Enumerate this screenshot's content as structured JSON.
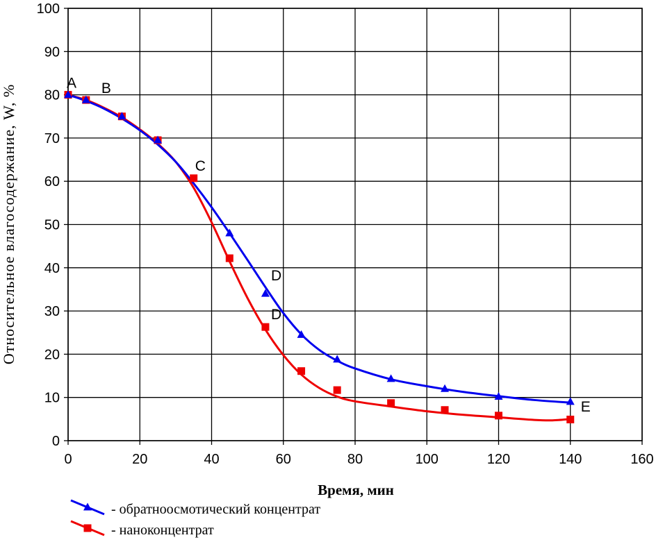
{
  "chart_data": {
    "type": "line",
    "xlabel": "Время, мин",
    "ylabel": "Относительное влагосодержание, W, %",
    "xlim": [
      0,
      160
    ],
    "ylim": [
      0,
      100
    ],
    "xticks": [
      0,
      20,
      40,
      60,
      80,
      100,
      120,
      140,
      160
    ],
    "yticks": [
      0,
      10,
      20,
      30,
      40,
      50,
      60,
      70,
      80,
      90,
      100
    ],
    "grid": true,
    "legend_position": "bottom-left",
    "series": [
      {
        "name": "- обратноосмотический концентрат",
        "color": "#0000ee",
        "marker": "triangle",
        "x": [
          0,
          5,
          15,
          25,
          45,
          55,
          65,
          75,
          90,
          105,
          120,
          140
        ],
        "y": [
          80,
          78.8,
          75,
          69.5,
          48,
          34,
          24.5,
          18.8,
          14.3,
          12,
          10.2,
          9
        ],
        "curve": [
          [
            0,
            80
          ],
          [
            5,
            78.6
          ],
          [
            10,
            76.8
          ],
          [
            15,
            74.5
          ],
          [
            20,
            71.8
          ],
          [
            25,
            68.5
          ],
          [
            30,
            64.5
          ],
          [
            35,
            59.5
          ],
          [
            40,
            54
          ],
          [
            45,
            48
          ],
          [
            50,
            41.8
          ],
          [
            55,
            35.5
          ],
          [
            60,
            29.5
          ],
          [
            65,
            24.6
          ],
          [
            70,
            21
          ],
          [
            75,
            18.5
          ],
          [
            80,
            16.7
          ],
          [
            90,
            14.2
          ],
          [
            100,
            12.6
          ],
          [
            110,
            11.3
          ],
          [
            120,
            10.3
          ],
          [
            130,
            9.4
          ],
          [
            140,
            8.8
          ]
        ]
      },
      {
        "name": "- наноконцентрат",
        "color": "#ee0000",
        "marker": "square",
        "x": [
          0,
          5,
          15,
          25,
          35,
          45,
          55,
          65,
          75,
          90,
          105,
          120,
          140
        ],
        "y": [
          80,
          78.8,
          75,
          69.5,
          60.7,
          42.2,
          26.3,
          16.1,
          11.7,
          8.7,
          7.1,
          5.8,
          4.9
        ],
        "curve": [
          [
            0,
            80
          ],
          [
            5,
            78.8
          ],
          [
            10,
            77
          ],
          [
            15,
            74.8
          ],
          [
            20,
            72
          ],
          [
            25,
            68.7
          ],
          [
            30,
            64.5
          ],
          [
            35,
            58.5
          ],
          [
            40,
            50.5
          ],
          [
            45,
            41.5
          ],
          [
            50,
            33
          ],
          [
            55,
            25.7
          ],
          [
            60,
            19.8
          ],
          [
            65,
            15.3
          ],
          [
            70,
            12.2
          ],
          [
            75,
            10.2
          ],
          [
            80,
            9.1
          ],
          [
            90,
            7.9
          ],
          [
            100,
            6.8
          ],
          [
            110,
            6.0
          ],
          [
            120,
            5.4
          ],
          [
            130,
            4.8
          ],
          [
            135,
            4.7
          ],
          [
            140,
            5.0
          ]
        ]
      }
    ],
    "annotations": [
      {
        "text": "A",
        "x": 0,
        "y": 80
      },
      {
        "text": "B",
        "x": 5,
        "y": 78.8
      },
      {
        "text": "C",
        "x": 35,
        "y": 60.7
      },
      {
        "text": "D",
        "x": 55,
        "y": 34
      },
      {
        "text": "D",
        "x": 55,
        "y": 26.3
      },
      {
        "text": "E",
        "x": 140,
        "y": 9
      }
    ]
  }
}
